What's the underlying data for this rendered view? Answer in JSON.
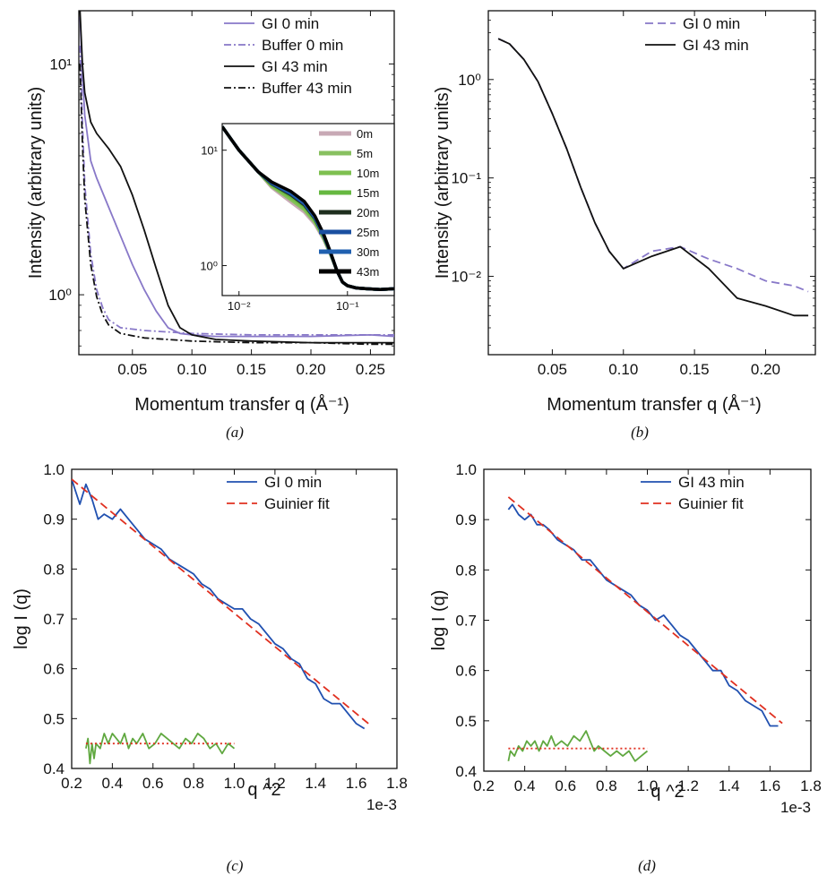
{
  "chart_data": [
    {
      "panel": "a",
      "caption": "(a)",
      "type": "line",
      "xlabel": "Momentum transfer q (Å⁻¹)",
      "ylabel": "Intensity (arbitrary units)",
      "xlim": [
        0.005,
        0.27
      ],
      "ylim": [
        0.55,
        17
      ],
      "yscale": "log",
      "xticks": [
        0.05,
        0.1,
        0.15,
        0.2,
        0.25
      ],
      "xticklabels": [
        "0.05",
        "0.10",
        "0.15",
        "0.20",
        "0.25"
      ],
      "yticks": [
        1,
        10
      ],
      "yticklabels": [
        "10⁰",
        "10¹"
      ],
      "legend_position": "top-right",
      "series": [
        {
          "name": "GI 0 min",
          "color": "#8878c8",
          "style": "solid",
          "x": [
            0.006,
            0.008,
            0.01,
            0.015,
            0.02,
            0.03,
            0.04,
            0.05,
            0.06,
            0.07,
            0.08,
            0.09,
            0.1,
            0.12,
            0.15,
            0.2,
            0.25,
            0.27
          ],
          "y": [
            16.0,
            9.0,
            6.0,
            3.8,
            3.2,
            2.4,
            1.8,
            1.35,
            1.05,
            0.85,
            0.72,
            0.68,
            0.67,
            0.66,
            0.66,
            0.66,
            0.67,
            0.66
          ]
        },
        {
          "name": "Buffer 0 min",
          "color": "#8878c8",
          "style": "dashdot",
          "x": [
            0.006,
            0.008,
            0.01,
            0.015,
            0.02,
            0.025,
            0.03,
            0.04,
            0.06,
            0.1,
            0.15,
            0.2,
            0.25,
            0.27
          ],
          "y": [
            12.0,
            5.5,
            3.0,
            1.5,
            1.05,
            0.88,
            0.78,
            0.72,
            0.7,
            0.68,
            0.67,
            0.67,
            0.67,
            0.67
          ]
        },
        {
          "name": "GI 43 min",
          "color": "#111111",
          "style": "solid",
          "x": [
            0.006,
            0.008,
            0.01,
            0.015,
            0.02,
            0.03,
            0.04,
            0.05,
            0.06,
            0.07,
            0.08,
            0.09,
            0.1,
            0.12,
            0.15,
            0.2,
            0.25,
            0.27
          ],
          "y": [
            17.0,
            10.0,
            7.5,
            5.6,
            5.0,
            4.3,
            3.6,
            2.7,
            1.9,
            1.3,
            0.9,
            0.72,
            0.67,
            0.64,
            0.63,
            0.62,
            0.62,
            0.62
          ]
        },
        {
          "name": "Buffer 43 min",
          "color": "#111111",
          "style": "dashdot",
          "x": [
            0.006,
            0.008,
            0.01,
            0.015,
            0.02,
            0.025,
            0.03,
            0.04,
            0.06,
            0.1,
            0.15,
            0.2,
            0.25,
            0.27
          ],
          "y": [
            10.0,
            4.5,
            2.6,
            1.35,
            0.98,
            0.82,
            0.74,
            0.68,
            0.65,
            0.63,
            0.62,
            0.62,
            0.61,
            0.61
          ]
        }
      ],
      "inset": {
        "type": "line",
        "xscale": "log",
        "yscale": "log",
        "xlim": [
          0.007,
          0.27
        ],
        "ylim": [
          0.55,
          17
        ],
        "xticks": [
          0.01,
          0.1
        ],
        "xticklabels": [
          "10⁻²",
          "10⁻¹"
        ],
        "yticks": [
          1,
          10
        ],
        "yticklabels": [
          "10⁰",
          "10¹"
        ],
        "legend_position": "top-right",
        "series": [
          {
            "name": "0m",
            "color": "#c8a9b5",
            "end_scale": 0.8
          },
          {
            "name": "5m",
            "color": "#88c060",
            "end_scale": 0.84
          },
          {
            "name": "10m",
            "color": "#7ec050",
            "end_scale": 0.87
          },
          {
            "name": "15m",
            "color": "#66b840",
            "end_scale": 0.9
          },
          {
            "name": "20m",
            "color": "#1e2e1e",
            "end_scale": 0.93
          },
          {
            "name": "25m",
            "color": "#1a4fa0",
            "end_scale": 0.95
          },
          {
            "name": "30m",
            "color": "#2060b0",
            "end_scale": 0.97
          },
          {
            "name": "43m",
            "color": "#000000",
            "end_scale": 1.0
          }
        ],
        "x": [
          0.007,
          0.01,
          0.015,
          0.02,
          0.03,
          0.04,
          0.05,
          0.06,
          0.07,
          0.08,
          0.09,
          0.1,
          0.12,
          0.15,
          0.2,
          0.27
        ],
        "y": [
          16.0,
          10.0,
          6.5,
          5.3,
          4.4,
          3.6,
          2.7,
          1.9,
          1.3,
          0.9,
          0.72,
          0.67,
          0.64,
          0.63,
          0.62,
          0.63
        ]
      }
    },
    {
      "panel": "b",
      "caption": "(b)",
      "type": "line",
      "xlabel": "Momentum transfer q (Å⁻¹)",
      "ylabel": "Intensity (arbitrary units)",
      "xlim": [
        0.005,
        0.235
      ],
      "ylim": [
        0.0016,
        5
      ],
      "yscale": "log",
      "xticks": [
        0.05,
        0.1,
        0.15,
        0.2
      ],
      "xticklabels": [
        "0.05",
        "0.10",
        "0.15",
        "0.20"
      ],
      "yticks": [
        0.01,
        0.1,
        1
      ],
      "yticklabels": [
        "10⁻²",
        "10⁻¹",
        "10⁰"
      ],
      "legend_position": "top-right",
      "series": [
        {
          "name": "GI 0 min",
          "color": "#8878c8",
          "style": "dashed",
          "x": [
            0.012,
            0.02,
            0.03,
            0.04,
            0.05,
            0.06,
            0.07,
            0.08,
            0.09,
            0.1,
            0.12,
            0.14,
            0.16,
            0.18,
            0.2,
            0.22,
            0.23
          ],
          "y": [
            2.6,
            2.3,
            1.6,
            0.95,
            0.45,
            0.2,
            0.08,
            0.035,
            0.018,
            0.012,
            0.018,
            0.02,
            0.015,
            0.012,
            0.009,
            0.008,
            0.007
          ]
        },
        {
          "name": "GI 43 min",
          "color": "#111111",
          "style": "solid",
          "x": [
            0.012,
            0.02,
            0.03,
            0.04,
            0.05,
            0.06,
            0.07,
            0.08,
            0.09,
            0.1,
            0.12,
            0.14,
            0.16,
            0.18,
            0.2,
            0.22,
            0.23
          ],
          "y": [
            2.6,
            2.3,
            1.6,
            0.95,
            0.45,
            0.2,
            0.08,
            0.035,
            0.018,
            0.012,
            0.016,
            0.02,
            0.012,
            0.006,
            0.005,
            0.004,
            0.004
          ]
        }
      ]
    },
    {
      "panel": "c",
      "caption": "(c)",
      "type": "line",
      "xlabel": "q ^2",
      "ylabel": "log I (q)",
      "x_offset_label": "1e-3",
      "xlim": [
        0.2,
        1.8
      ],
      "ylim": [
        0.4,
        1.0
      ],
      "xticks": [
        0.2,
        0.4,
        0.6,
        0.8,
        1.0,
        1.2,
        1.4,
        1.6,
        1.8
      ],
      "xticklabels": [
        "0.2",
        "0.4",
        "0.6",
        "0.8",
        "1.0",
        "1.2",
        "1.4",
        "1.6",
        "1.8"
      ],
      "yticks": [
        0.4,
        0.5,
        0.6,
        0.7,
        0.8,
        0.9,
        1.0
      ],
      "yticklabels": [
        "0.4",
        "0.5",
        "0.6",
        "0.7",
        "0.8",
        "0.9",
        "1.0"
      ],
      "legend_position": "top-right",
      "series": [
        {
          "name": "GI 0 min",
          "color": "#2050b0",
          "style": "solid",
          "x": [
            0.2,
            0.24,
            0.27,
            0.3,
            0.33,
            0.36,
            0.4,
            0.44,
            0.48,
            0.52,
            0.56,
            0.6,
            0.64,
            0.68,
            0.72,
            0.76,
            0.8,
            0.84,
            0.88,
            0.92,
            0.96,
            1.0,
            1.04,
            1.08,
            1.12,
            1.16,
            1.2,
            1.24,
            1.28,
            1.32,
            1.36,
            1.4,
            1.44,
            1.48,
            1.52,
            1.56,
            1.6,
            1.64
          ],
          "y": [
            0.98,
            0.93,
            0.97,
            0.94,
            0.9,
            0.91,
            0.9,
            0.92,
            0.9,
            0.88,
            0.86,
            0.85,
            0.84,
            0.82,
            0.81,
            0.8,
            0.79,
            0.77,
            0.76,
            0.74,
            0.73,
            0.72,
            0.72,
            0.7,
            0.69,
            0.67,
            0.65,
            0.64,
            0.62,
            0.61,
            0.58,
            0.57,
            0.54,
            0.53,
            0.53,
            0.51,
            0.49,
            0.48
          ]
        },
        {
          "name": "Guinier fit",
          "color": "#e03020",
          "style": "dashed",
          "x": [
            0.2,
            1.66
          ],
          "y": [
            0.98,
            0.49
          ]
        },
        {
          "color": "#60a840",
          "style": "solid",
          "x": [
            0.27,
            0.28,
            0.29,
            0.3,
            0.31,
            0.32,
            0.34,
            0.36,
            0.38,
            0.4,
            0.42,
            0.44,
            0.46,
            0.48,
            0.5,
            0.52,
            0.55,
            0.58,
            0.61,
            0.64,
            0.67,
            0.7,
            0.73,
            0.76,
            0.79,
            0.82,
            0.85,
            0.88,
            0.91,
            0.94,
            0.97,
            1.0
          ],
          "y": [
            0.44,
            0.46,
            0.41,
            0.45,
            0.42,
            0.45,
            0.44,
            0.47,
            0.45,
            0.47,
            0.46,
            0.45,
            0.47,
            0.44,
            0.46,
            0.45,
            0.47,
            0.44,
            0.45,
            0.47,
            0.46,
            0.45,
            0.44,
            0.46,
            0.45,
            0.47,
            0.46,
            0.44,
            0.45,
            0.43,
            0.45,
            0.44
          ]
        },
        {
          "color": "#e03020",
          "style": "dotted",
          "x": [
            0.27,
            1.0
          ],
          "y": [
            0.45,
            0.45
          ]
        }
      ]
    },
    {
      "panel": "d",
      "caption": "(d)",
      "type": "line",
      "xlabel": "q ^2",
      "ylabel": "log I (q)",
      "x_offset_label": "1e-3",
      "xlim": [
        0.2,
        1.8
      ],
      "ylim": [
        0.4,
        1.0
      ],
      "xticks": [
        0.2,
        0.4,
        0.6,
        0.8,
        1.0,
        1.2,
        1.4,
        1.6,
        1.8
      ],
      "xticklabels": [
        "0.2",
        "0.4",
        "0.6",
        "0.8",
        "1.0",
        "1.2",
        "1.4",
        "1.6",
        "1.8"
      ],
      "yticks": [
        0.4,
        0.5,
        0.6,
        0.7,
        0.8,
        0.9,
        1.0
      ],
      "yticklabels": [
        "0.4",
        "0.5",
        "0.6",
        "0.7",
        "0.8",
        "0.9",
        "1.0"
      ],
      "legend_position": "top-right",
      "series": [
        {
          "name": "GI 43 min",
          "color": "#2050b0",
          "style": "solid",
          "x": [
            0.32,
            0.34,
            0.37,
            0.4,
            0.43,
            0.46,
            0.49,
            0.52,
            0.56,
            0.6,
            0.64,
            0.68,
            0.72,
            0.76,
            0.8,
            0.84,
            0.88,
            0.92,
            0.96,
            1.0,
            1.04,
            1.08,
            1.12,
            1.16,
            1.2,
            1.24,
            1.28,
            1.32,
            1.36,
            1.4,
            1.44,
            1.48,
            1.52,
            1.56,
            1.6,
            1.64
          ],
          "y": [
            0.92,
            0.93,
            0.91,
            0.9,
            0.91,
            0.89,
            0.89,
            0.88,
            0.86,
            0.85,
            0.84,
            0.82,
            0.82,
            0.8,
            0.78,
            0.77,
            0.76,
            0.75,
            0.73,
            0.72,
            0.7,
            0.71,
            0.69,
            0.67,
            0.66,
            0.64,
            0.62,
            0.6,
            0.6,
            0.57,
            0.56,
            0.54,
            0.53,
            0.52,
            0.49,
            0.49
          ]
        },
        {
          "name": "Guinier fit",
          "color": "#e03020",
          "style": "dashed",
          "x": [
            0.32,
            1.66
          ],
          "y": [
            0.945,
            0.495
          ]
        },
        {
          "color": "#60a840",
          "style": "solid",
          "x": [
            0.32,
            0.33,
            0.35,
            0.37,
            0.39,
            0.41,
            0.43,
            0.45,
            0.47,
            0.49,
            0.51,
            0.53,
            0.55,
            0.58,
            0.61,
            0.64,
            0.67,
            0.7,
            0.72,
            0.74,
            0.76,
            0.79,
            0.82,
            0.85,
            0.88,
            0.91,
            0.94,
            0.97,
            1.0
          ],
          "y": [
            0.42,
            0.44,
            0.43,
            0.45,
            0.44,
            0.46,
            0.45,
            0.46,
            0.44,
            0.46,
            0.45,
            0.47,
            0.45,
            0.46,
            0.45,
            0.47,
            0.46,
            0.48,
            0.46,
            0.44,
            0.45,
            0.44,
            0.43,
            0.44,
            0.43,
            0.44,
            0.42,
            0.43,
            0.44
          ]
        },
        {
          "color": "#e03020",
          "style": "dotted",
          "x": [
            0.32,
            1.0
          ],
          "y": [
            0.445,
            0.445
          ]
        }
      ]
    }
  ]
}
